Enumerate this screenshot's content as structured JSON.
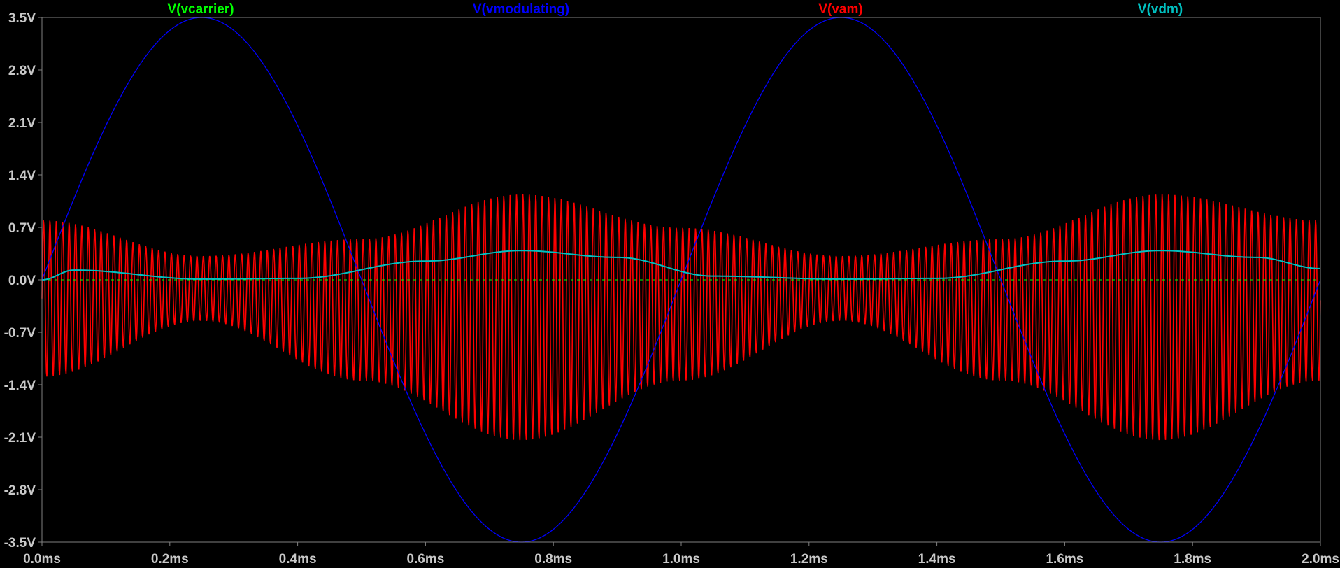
{
  "chart_data": {
    "type": "line",
    "xlim": [
      0.0,
      2.0
    ],
    "ylim": [
      -3.5,
      3.5
    ],
    "x_ticks": [
      "0.0ms",
      "0.2ms",
      "0.4ms",
      "0.6ms",
      "0.8ms",
      "1.0ms",
      "1.2ms",
      "1.4ms",
      "1.6ms",
      "1.8ms",
      "2.0ms"
    ],
    "y_ticks": [
      "3.5V",
      "2.8V",
      "2.1V",
      "1.4V",
      "0.7V",
      "0.0V",
      "-0.7V",
      "-1.4V",
      "-2.1V",
      "-2.8V",
      "-3.5V"
    ],
    "grid": false,
    "legend_placement": "top",
    "series": [
      {
        "name": "V(vcarrier)",
        "color": "#00ff00",
        "description": "carrier (very small amplitude, near 0 V)",
        "x": [
          0.0,
          2.0
        ],
        "y": [
          0.0,
          0.0
        ]
      },
      {
        "name": "V(vmodulating)",
        "color": "#0000ff",
        "description": "sinusoid, amplitude 3.5 V, period 1.0 ms, peaks at 0.25 ms and 1.25 ms",
        "x": [
          0.0,
          0.25,
          0.5,
          0.75,
          1.0,
          1.25,
          1.5,
          1.75,
          2.0
        ],
        "y": [
          0.0,
          3.5,
          0.0,
          -3.5,
          0.0,
          3.5,
          0.0,
          -3.5,
          0.0
        ]
      },
      {
        "name": "V(vam)",
        "color": "#ff0000",
        "description": "AM signal envelope",
        "x": [
          0.0,
          0.25,
          0.5,
          0.75,
          1.0,
          1.25,
          1.5,
          1.75,
          2.0
        ],
        "y_upper": [
          0.8,
          0.32,
          0.55,
          1.15,
          0.7,
          0.32,
          0.55,
          1.15,
          0.8
        ],
        "y_lower": [
          -1.3,
          -0.55,
          -1.35,
          -2.15,
          -1.35,
          -0.55,
          -1.35,
          -2.15,
          -1.35
        ]
      },
      {
        "name": "V(vdm)",
        "color": "#00c0c0",
        "description": "demodulated output",
        "x": [
          0.0,
          0.05,
          0.25,
          0.4,
          0.6,
          0.75,
          0.9,
          1.05,
          1.25,
          1.4,
          1.6,
          1.75,
          1.9,
          2.0
        ],
        "y": [
          0.0,
          0.13,
          0.01,
          0.02,
          0.25,
          0.39,
          0.3,
          0.05,
          0.01,
          0.02,
          0.25,
          0.39,
          0.3,
          0.15
        ]
      }
    ]
  }
}
